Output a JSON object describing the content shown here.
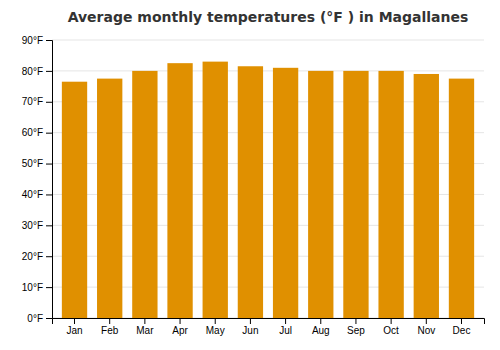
{
  "chart_data": {
    "type": "bar",
    "title": "Average monthly temperatures (°F ) in Magallanes",
    "categories": [
      "Jan",
      "Feb",
      "Mar",
      "Apr",
      "May",
      "Jun",
      "Jul",
      "Aug",
      "Sep",
      "Oct",
      "Nov",
      "Dec"
    ],
    "values": [
      76.5,
      77.5,
      80.0,
      82.5,
      83.0,
      81.5,
      81.0,
      80.0,
      80.0,
      80.0,
      79.0,
      77.5
    ],
    "color": "#E09000",
    "ylim": [
      0,
      90
    ],
    "yticks": [
      {
        "value": 0,
        "label": "0°F"
      },
      {
        "value": 10,
        "label": "10°F"
      },
      {
        "value": 20,
        "label": "20°F"
      },
      {
        "value": 30,
        "label": "30°F"
      },
      {
        "value": 40,
        "label": "40°F"
      },
      {
        "value": 50,
        "label": "50°F"
      },
      {
        "value": 60,
        "label": "60°F"
      },
      {
        "value": 70,
        "label": "70°F"
      },
      {
        "value": 80,
        "label": "80°F"
      },
      {
        "value": 90,
        "label": "90°F"
      }
    ],
    "grid": true
  }
}
